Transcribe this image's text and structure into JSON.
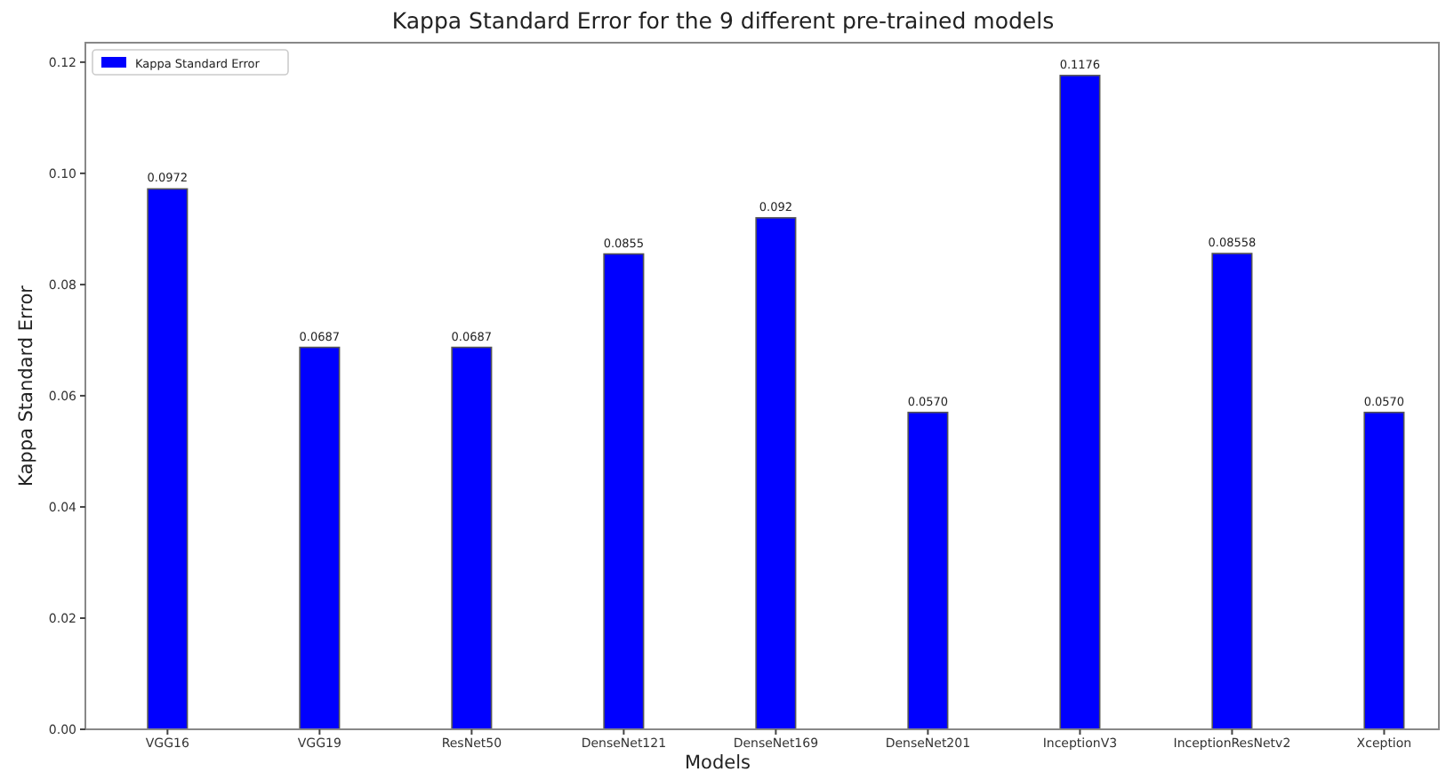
{
  "chart_data": {
    "type": "bar",
    "title": "Kappa Standard Error for the 9 different pre-trained models",
    "xlabel": "Models",
    "ylabel": "Kappa Standard Error",
    "categories": [
      "VGG16",
      "VGG19",
      "ResNet50",
      "DenseNet121",
      "DenseNet169",
      "DenseNet201",
      "InceptionV3",
      "InceptionResNetv2",
      "Xception"
    ],
    "series": [
      {
        "name": "Kappa Standard Error",
        "color": "#0000ff",
        "values": [
          0.0972,
          0.0687,
          0.0687,
          0.0855,
          0.092,
          0.057,
          0.1176,
          0.08558,
          0.057
        ],
        "value_labels": [
          "0.0972",
          "0.0687",
          "0.0687",
          "0.0855",
          "0.092",
          "0.0570",
          "0.1176",
          "0.08558",
          "0.0570"
        ]
      }
    ],
    "ylim": [
      0,
      0.1235
    ],
    "yticks": [
      {
        "value": 0,
        "label": "0.00"
      },
      {
        "value": 0.02,
        "label": "0.02"
      },
      {
        "value": 0.04,
        "label": "0.04"
      },
      {
        "value": 0.06,
        "label": "0.06"
      },
      {
        "value": 0.08,
        "label": "0.08"
      },
      {
        "value": 0.1,
        "label": "0.10"
      },
      {
        "value": 0.12,
        "label": "0.12"
      }
    ],
    "legend": "top left"
  }
}
